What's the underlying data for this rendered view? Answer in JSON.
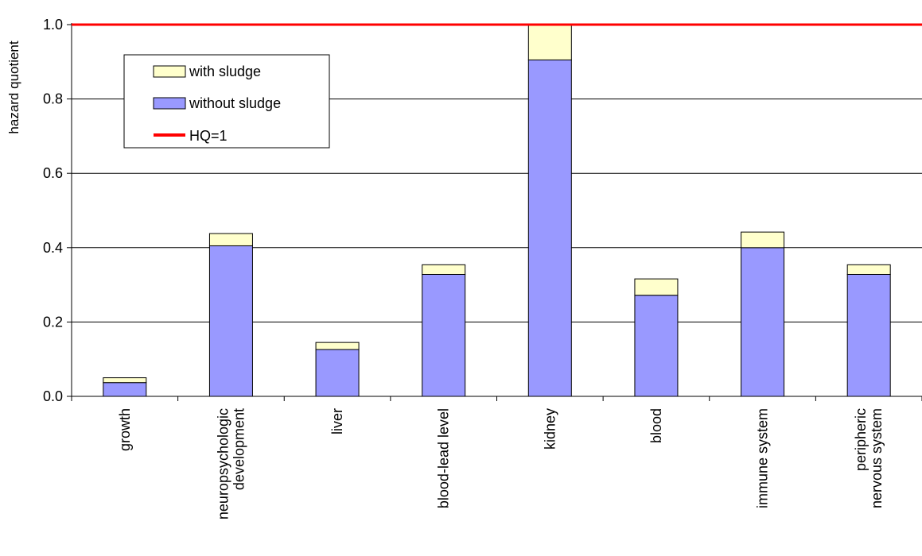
{
  "chart_data": {
    "type": "bar",
    "stacked": true,
    "title": "",
    "xlabel": "",
    "ylabel": "hazard quotient",
    "ylim": [
      0,
      1.0
    ],
    "yticks": [
      "0.0",
      "0.2",
      "0.4",
      "0.6",
      "0.8",
      "1.0"
    ],
    "grid": true,
    "legend_position": "top-left",
    "categories": [
      [
        "growth"
      ],
      [
        "neuropsychologic",
        "development"
      ],
      [
        "liver"
      ],
      [
        "blood-lead level"
      ],
      [
        "kidney"
      ],
      [
        "blood"
      ],
      [
        "immune system"
      ],
      [
        "peripheric",
        "nervous system"
      ]
    ],
    "series": [
      {
        "name": "without sludge",
        "color": "#9999ff",
        "values": [
          0.037,
          0.405,
          0.126,
          0.328,
          0.905,
          0.272,
          0.4,
          0.328
        ]
      },
      {
        "name": "with sludge",
        "color": "#ffffcc",
        "values": [
          0.013,
          0.033,
          0.019,
          0.026,
          0.093,
          0.044,
          0.042,
          0.026
        ]
      }
    ],
    "reference_line": {
      "name": "HQ=1",
      "value": 1.0,
      "color": "#ff0000"
    },
    "legend": [
      "with sludge",
      "without sludge",
      "HQ=1"
    ]
  }
}
